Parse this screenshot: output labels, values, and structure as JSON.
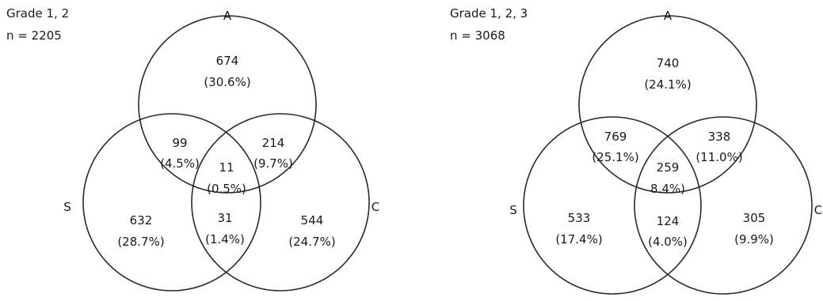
{
  "diagrams": [
    {
      "title": "Grade 1, 2",
      "n_label": "n = 2205",
      "sets": {
        "A": "A",
        "S": "S",
        "C": "C"
      },
      "regions": {
        "A_only": {
          "count": "674",
          "pct": "(30.6%)"
        },
        "S_only": {
          "count": "632",
          "pct": "(28.7%)"
        },
        "C_only": {
          "count": "544",
          "pct": "(24.7%)"
        },
        "AS": {
          "count": "99",
          "pct": "(4.5%)"
        },
        "AC": {
          "count": "214",
          "pct": "(9.7%)"
        },
        "SC": {
          "count": "31",
          "pct": "(1.4%)"
        },
        "ASC": {
          "count": "11",
          "pct": "(0.5%)"
        }
      }
    },
    {
      "title": "Grade 1, 2, 3",
      "n_label": "n = 3068",
      "sets": {
        "A": "A",
        "S": "S",
        "C": "C"
      },
      "regions": {
        "A_only": {
          "count": "740",
          "pct": "(24.1%)"
        },
        "S_only": {
          "count": "533",
          "pct": "(17.4%)"
        },
        "C_only": {
          "count": "305",
          "pct": "(9.9%)"
        },
        "AS": {
          "count": "769",
          "pct": "(25.1%)"
        },
        "AC": {
          "count": "338",
          "pct": "(11.0%)"
        },
        "SC": {
          "count": "124",
          "pct": "(4.0%)"
        },
        "ASC": {
          "count": "259",
          "pct": "8.4%)"
        }
      }
    }
  ]
}
